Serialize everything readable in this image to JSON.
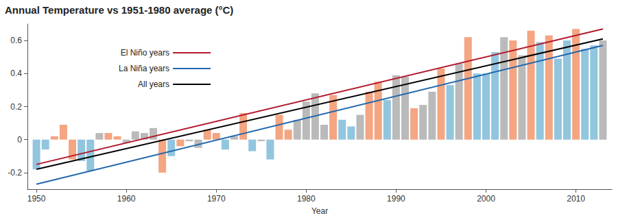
{
  "chart_data": {
    "type": "bar",
    "title": "Annual Temperature vs 1951-1980 average (°C)",
    "x_label": "Year",
    "x": [
      1950,
      1951,
      1952,
      1953,
      1954,
      1955,
      1956,
      1957,
      1958,
      1959,
      1960,
      1961,
      1962,
      1963,
      1964,
      1965,
      1966,
      1967,
      1968,
      1969,
      1970,
      1971,
      1972,
      1973,
      1974,
      1975,
      1976,
      1977,
      1978,
      1979,
      1980,
      1981,
      1982,
      1983,
      1984,
      1985,
      1986,
      1987,
      1988,
      1989,
      1990,
      1991,
      1992,
      1993,
      1994,
      1995,
      1996,
      1997,
      1998,
      1999,
      2000,
      2001,
      2002,
      2003,
      2004,
      2005,
      2006,
      2007,
      2008,
      2009,
      2010,
      2011,
      2012,
      2013
    ],
    "values": [
      -0.18,
      -0.06,
      0.02,
      0.09,
      -0.12,
      -0.13,
      -0.19,
      0.04,
      0.04,
      0.02,
      -0.02,
      0.05,
      0.04,
      0.07,
      -0.2,
      -0.1,
      -0.04,
      -0.01,
      -0.05,
      0.06,
      0.04,
      -0.06,
      0.02,
      0.16,
      -0.07,
      -0.01,
      -0.12,
      0.15,
      0.06,
      0.12,
      0.23,
      0.28,
      0.09,
      0.27,
      0.12,
      0.08,
      0.15,
      0.29,
      0.35,
      0.24,
      0.39,
      0.38,
      0.19,
      0.21,
      0.29,
      0.43,
      0.33,
      0.46,
      0.62,
      0.4,
      0.4,
      0.53,
      0.62,
      0.6,
      0.51,
      0.66,
      0.59,
      0.63,
      0.49,
      0.6,
      0.67,
      0.55,
      0.57,
      0.6
    ],
    "colors": [
      "#92c5de",
      "#92c5de",
      "#f4a582",
      "#f4a582",
      "#f4a582",
      "#92c5de",
      "#92c5de",
      "#bababa",
      "#f4a582",
      "#f4a582",
      "#bababa",
      "#bababa",
      "#bababa",
      "#bababa",
      "#f4a582",
      "#92c5de",
      "#f4a582",
      "#bababa",
      "#bababa",
      "#f4a582",
      "#f4a582",
      "#92c5de",
      "#bababa",
      "#f4a582",
      "#92c5de",
      "#bababa",
      "#92c5de",
      "#f4a582",
      "#f4a582",
      "#bababa",
      "#bababa",
      "#bababa",
      "#bababa",
      "#f4a582",
      "#92c5de",
      "#92c5de",
      "#bababa",
      "#f4a582",
      "#f4a582",
      "#92c5de",
      "#bababa",
      "#bababa",
      "#f4a582",
      "#bababa",
      "#bababa",
      "#f4a582",
      "#92c5de",
      "#bababa",
      "#f4a582",
      "#92c5de",
      "#92c5de",
      "#92c5de",
      "#bababa",
      "#f4a582",
      "#bababa",
      "#f4a582",
      "#92c5de",
      "#f4a582",
      "#92c5de",
      "#92c5de",
      "#f4a582",
      "#92c5de",
      "#92c5de",
      "#bababa"
    ],
    "series": [
      {
        "name": "El Niño years",
        "type": "line",
        "color": "#b2182b",
        "x": [
          1950,
          2013
        ],
        "values": [
          -0.15,
          0.67
        ]
      },
      {
        "name": "La Niña years",
        "type": "line",
        "color": "#2166ac",
        "x": [
          1950,
          2013
        ],
        "values": [
          -0.27,
          0.57
        ]
      },
      {
        "name": "All years",
        "type": "line",
        "color": "#000000",
        "x": [
          1950,
          2013
        ],
        "values": [
          -0.18,
          0.61
        ]
      }
    ],
    "xlim": [
      1949,
      2014
    ],
    "xticks": [
      1950,
      1960,
      1970,
      1980,
      1990,
      2000,
      2010
    ],
    "ylim": [
      -0.3,
      0.7
    ],
    "yticks": [
      -0.2,
      0,
      0.2,
      0.4,
      0.6
    ],
    "grid": false,
    "legend": "upper left"
  }
}
